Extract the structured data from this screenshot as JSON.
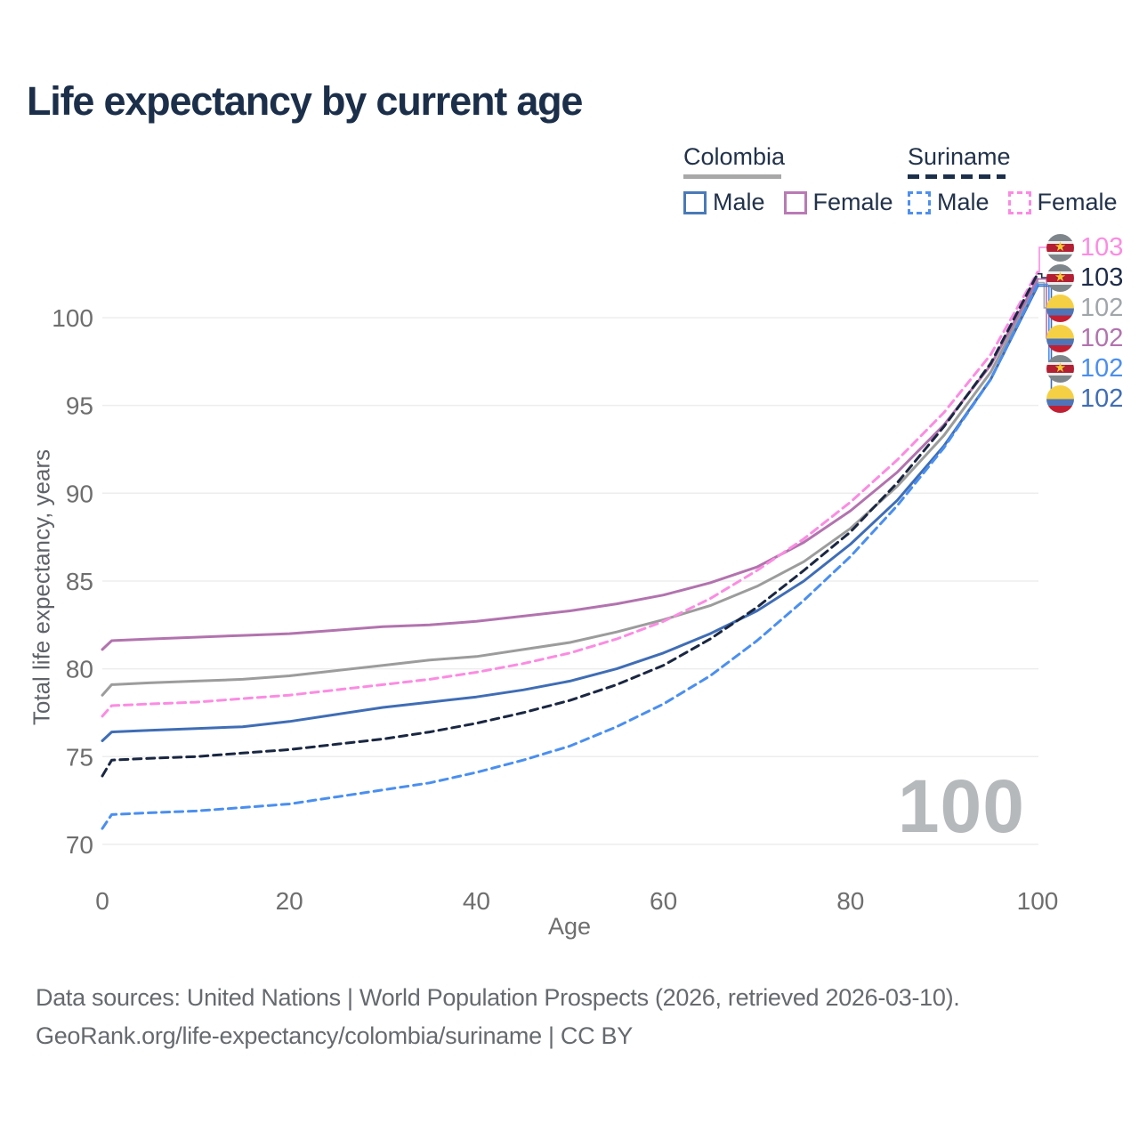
{
  "header": {
    "title": "Life expectancy by current age"
  },
  "legend": {
    "groups": [
      {
        "name": "Colombia",
        "line_style": "solid",
        "items": [
          {
            "label": "Male",
            "color": "#4a7ab8"
          },
          {
            "label": "Female",
            "color": "#b97ab5"
          }
        ]
      },
      {
        "name": "Suriname",
        "line_style": "dashed",
        "items": [
          {
            "label": "Male",
            "color": "#4f8fee"
          },
          {
            "label": "Female",
            "color": "#fb8ae2"
          }
        ]
      }
    ]
  },
  "chart_data": {
    "type": "line",
    "title": "Life expectancy by current age",
    "xlabel": "Age",
    "ylabel": "Total life expectancy, years",
    "xlim": [
      0,
      100
    ],
    "ylim": [
      70,
      100
    ],
    "xticks": [
      0,
      20,
      40,
      60,
      80,
      100
    ],
    "yticks": [
      70,
      75,
      80,
      85,
      90,
      95,
      100
    ],
    "grid": "horizontal",
    "legend_position": "top-right",
    "watermark": "100",
    "ages": [
      0,
      1,
      5,
      10,
      15,
      20,
      25,
      30,
      35,
      40,
      45,
      50,
      55,
      60,
      65,
      70,
      75,
      80,
      85,
      90,
      95,
      100
    ],
    "series": [
      {
        "id": "colombia_total",
        "name": "Colombia (both sexes)",
        "country": "Colombia",
        "color": "#9c9c9c",
        "line_style": "solid",
        "values": [
          78.5,
          79.1,
          79.2,
          79.3,
          79.4,
          79.6,
          79.9,
          80.2,
          80.5,
          80.7,
          81.1,
          81.5,
          82.1,
          82.8,
          83.6,
          84.7,
          86.1,
          88.0,
          90.4,
          93.3,
          96.9,
          102.0
        ]
      },
      {
        "id": "colombia_female",
        "name": "Colombia Female",
        "country": "Colombia",
        "color": "#b273ae",
        "line_style": "solid",
        "values": [
          81.1,
          81.6,
          81.7,
          81.8,
          81.9,
          82.0,
          82.2,
          82.4,
          82.5,
          82.7,
          83.0,
          83.3,
          83.7,
          84.2,
          84.9,
          85.8,
          87.2,
          89.0,
          91.2,
          93.9,
          97.3,
          102.2
        ]
      },
      {
        "id": "colombia_male",
        "name": "Colombia Male",
        "country": "Colombia",
        "color": "#3f6db6",
        "line_style": "solid",
        "values": [
          75.9,
          76.4,
          76.5,
          76.6,
          76.7,
          77.0,
          77.4,
          77.8,
          78.1,
          78.4,
          78.8,
          79.3,
          80.0,
          80.9,
          82.0,
          83.3,
          85.0,
          87.1,
          89.6,
          92.7,
          96.5,
          101.8
        ]
      },
      {
        "id": "suriname_female",
        "name": "Suriname Female",
        "country": "Suriname",
        "color": "#fb8ce2",
        "line_style": "dashed",
        "values": [
          77.3,
          77.9,
          78.0,
          78.1,
          78.3,
          78.5,
          78.8,
          79.1,
          79.4,
          79.8,
          80.3,
          80.9,
          81.7,
          82.7,
          84.0,
          85.6,
          87.4,
          89.5,
          91.9,
          94.6,
          97.9,
          102.6
        ]
      },
      {
        "id": "suriname_total",
        "name": "Suriname (both sexes)",
        "country": "Suriname",
        "color": "#1a2742",
        "line_style": "dashed",
        "values": [
          73.9,
          74.8,
          74.9,
          75.0,
          75.2,
          75.4,
          75.7,
          76.0,
          76.4,
          76.9,
          77.5,
          78.2,
          79.1,
          80.2,
          81.7,
          83.5,
          85.6,
          87.8,
          90.6,
          93.8,
          97.4,
          102.5
        ]
      },
      {
        "id": "suriname_male",
        "name": "Suriname Male",
        "country": "Suriname",
        "color": "#4a8ff0",
        "line_style": "dashed",
        "values": [
          70.9,
          71.7,
          71.8,
          71.9,
          72.1,
          72.3,
          72.7,
          73.1,
          73.5,
          74.1,
          74.8,
          75.6,
          76.7,
          78.0,
          79.6,
          81.6,
          83.9,
          86.4,
          89.3,
          92.6,
          96.5,
          101.9
        ]
      }
    ],
    "end_labels": [
      {
        "series": "suriname_female",
        "value": "103",
        "flag": "suriname",
        "color": "#fc8ce2"
      },
      {
        "series": "suriname_total",
        "value": "103",
        "flag": "suriname",
        "color": "#1e2c49"
      },
      {
        "series": "colombia_total",
        "value": "102",
        "flag": "colombia",
        "color": "#a1a6ab"
      },
      {
        "series": "colombia_female",
        "value": "102",
        "flag": "colombia",
        "color": "#b273ae"
      },
      {
        "series": "suriname_male",
        "value": "102",
        "flag": "suriname",
        "color": "#4a8ff0"
      },
      {
        "series": "colombia_male",
        "value": "102",
        "flag": "colombia",
        "color": "#3f6db6"
      }
    ]
  },
  "footer": {
    "line1": "Data sources: United Nations | World Population Prospects (2026, retrieved 2026-03-10).",
    "line2": "GeoRank.org/life-expectancy/colombia/suriname | CC BY"
  }
}
